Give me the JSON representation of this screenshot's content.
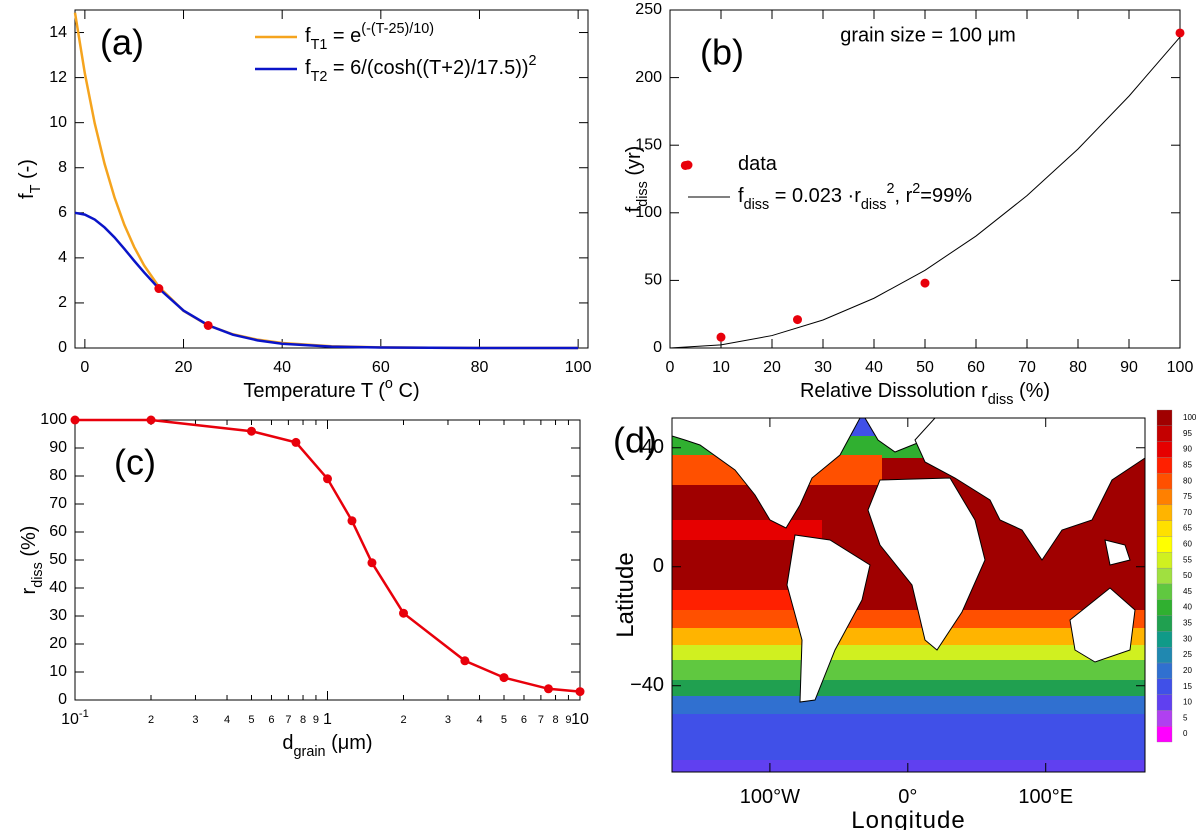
{
  "chart_data": [
    {
      "type": "line",
      "panel_label": "(a)",
      "xlabel": [
        {
          "text": "Temperature T ("
        },
        {
          "text": "o",
          "style": "sup"
        },
        {
          "text": " C)"
        }
      ],
      "ylabel": [
        {
          "text": "f"
        },
        {
          "text": "T",
          "style": "sub"
        },
        {
          "text": " (-)"
        }
      ],
      "xlim": [
        -2,
        102
      ],
      "ylim": [
        0,
        15
      ],
      "xticks": [
        0,
        20,
        40,
        60,
        80,
        100
      ],
      "yticks": [
        0,
        2,
        4,
        6,
        8,
        10,
        12,
        14
      ],
      "legend": "upper right",
      "series": [
        {
          "name": [
            {
              "text": "f"
            },
            {
              "text": "T1",
              "style": "sub"
            },
            {
              "text": " = e"
            },
            {
              "text": "(-(T-25)/10)",
              "style": "sup"
            }
          ],
          "color": "#f5a41e",
          "x": [
            -2,
            0,
            2,
            4,
            6,
            8,
            10,
            12,
            15,
            20,
            25,
            30,
            35,
            40,
            50,
            60,
            70,
            80,
            90,
            100
          ],
          "values": [
            14.88,
            12.18,
            9.97,
            8.17,
            6.69,
            5.47,
            4.48,
            3.67,
            2.72,
            1.65,
            1,
            0.61,
            0.37,
            0.22,
            0.08,
            0.03,
            0.01,
            0,
            0,
            0
          ]
        },
        {
          "name": [
            {
              "text": "f"
            },
            {
              "text": "T2",
              "style": "sub"
            },
            {
              "text": " = 6/(cosh((T+2)/17.5))"
            },
            {
              "text": "2",
              "style": "sup"
            }
          ],
          "color": "#0a14c8",
          "x": [
            -2,
            0,
            2,
            4,
            6,
            8,
            10,
            12,
            15,
            20,
            25,
            30,
            35,
            40,
            50,
            60,
            70,
            80,
            90,
            100
          ],
          "values": [
            6,
            5.92,
            5.7,
            5.35,
            4.91,
            4.4,
            3.87,
            3.36,
            2.64,
            1.66,
            1.01,
            0.59,
            0.34,
            0.19,
            0.06,
            0.02,
            0.01,
            0,
            0,
            0
          ]
        },
        {
          "type": "scatter",
          "color": "#e8000b",
          "x": [
            15,
            25
          ],
          "values": [
            2.64,
            1
          ]
        }
      ]
    },
    {
      "type": "scatter",
      "panel_label": "(b)",
      "xlabel": [
        {
          "text": "Relative Dissolution r"
        },
        {
          "text": "diss",
          "style": "sub"
        },
        {
          "text": " (%)"
        }
      ],
      "ylabel": [
        {
          "text": "f"
        },
        {
          "text": "diss",
          "style": "sub"
        },
        {
          "text": " (yr)"
        }
      ],
      "annotation": "grain size = 100 μm",
      "xlim": [
        0,
        100
      ],
      "ylim": [
        0,
        250
      ],
      "xticks": [
        0,
        10,
        20,
        30,
        40,
        50,
        60,
        70,
        80,
        90,
        100
      ],
      "yticks": [
        0,
        50,
        100,
        150,
        200,
        250
      ],
      "legend": "center left",
      "series": [
        {
          "name": [
            {
              "text": "data"
            }
          ],
          "color": "#e8000b",
          "x": [
            3,
            10,
            25,
            50,
            100
          ],
          "values": [
            135,
            8,
            21,
            48,
            233
          ]
        },
        {
          "type": "line",
          "name": [
            {
              "text": "f"
            },
            {
              "text": "diss",
              "style": "sub"
            },
            {
              "text": " = 0.023 ·r"
            },
            {
              "text": "diss",
              "style": "sub"
            },
            {
              "text": "2",
              "style": "sup"
            },
            {
              "text": ", r"
            },
            {
              "text": "2",
              "style": "sup"
            },
            {
              "text": "=99%"
            }
          ],
          "color": "#000000",
          "x": [
            0,
            10,
            20,
            30,
            40,
            50,
            60,
            70,
            80,
            90,
            100
          ],
          "values": [
            0,
            2.3,
            9.2,
            20.7,
            36.8,
            57.5,
            82.8,
            112.7,
            147.2,
            186.3,
            230
          ]
        }
      ]
    },
    {
      "type": "line",
      "panel_label": "(c)",
      "xlog": true,
      "markers": true,
      "xlabel": [
        {
          "text": "d"
        },
        {
          "text": "grain",
          "style": "sub"
        },
        {
          "text": " (μm)"
        }
      ],
      "ylabel": [
        {
          "text": "r"
        },
        {
          "text": "diss",
          "style": "sub"
        },
        {
          "text": " (%)"
        }
      ],
      "xlim": [
        0.1,
        10
      ],
      "ylim": [
        0,
        100
      ],
      "xticks": [
        {
          "value": 0.1,
          "label": "10",
          "exponent": "-1"
        },
        {
          "value": 0.2,
          "label": "2"
        },
        {
          "value": 0.3,
          "label": "3"
        },
        {
          "value": 0.4,
          "label": "4"
        },
        {
          "value": 0.5,
          "label": "5"
        },
        {
          "value": 0.6,
          "label": "6"
        },
        {
          "value": 0.7,
          "label": "7"
        },
        {
          "value": 0.8,
          "label": "8"
        },
        {
          "value": 0.9,
          "label": "9"
        },
        1,
        2,
        3,
        4,
        5,
        6,
        7,
        8,
        9,
        10
      ],
      "yticks": [
        0,
        10,
        20,
        30,
        40,
        50,
        60,
        70,
        80,
        90,
        100
      ],
      "series": [
        {
          "color": "#e8000b",
          "x": [
            0.1,
            0.2,
            0.5,
            0.75,
            1,
            1.25,
            1.5,
            2,
            3.5,
            5,
            7.5,
            10
          ],
          "values": [
            100,
            100,
            96,
            92,
            79,
            64,
            49,
            31,
            14,
            8,
            4,
            3
          ]
        }
      ]
    },
    {
      "type": "map",
      "panel_label": "(d)",
      "xlabel": [
        {
          "text": "Longitude"
        }
      ],
      "ylabel": [
        {
          "text": "Latitude"
        }
      ],
      "xlim": [
        -171,
        172
      ],
      "ylim": [
        -69,
        50
      ],
      "xticks": [
        {
          "value": -100,
          "label": "100°W"
        },
        {
          "value": 0,
          "label": "0°"
        },
        {
          "value": 100,
          "label": "100°E"
        }
      ],
      "yticks": [
        {
          "value": -40,
          "label": "−40"
        },
        0,
        40
      ],
      "colorbar": {
        "levels": [
          0,
          5,
          10,
          15,
          20,
          25,
          30,
          35,
          40,
          45,
          50,
          55,
          60,
          65,
          70,
          75,
          80,
          85,
          90,
          95,
          100
        ],
        "colors": [
          "#ff00ff",
          "#b040f0",
          "#6040f0",
          "#4050e8",
          "#3070d0",
          "#2088b0",
          "#109a88",
          "#20a050",
          "#30b030",
          "#60c840",
          "#a0e040",
          "#d0f020",
          "#ffff00",
          "#ffe000",
          "#ffb400",
          "#ff8000",
          "#ff5000",
          "#ff2000",
          "#e60000",
          "#c40000",
          "#a00000"
        ]
      }
    }
  ]
}
